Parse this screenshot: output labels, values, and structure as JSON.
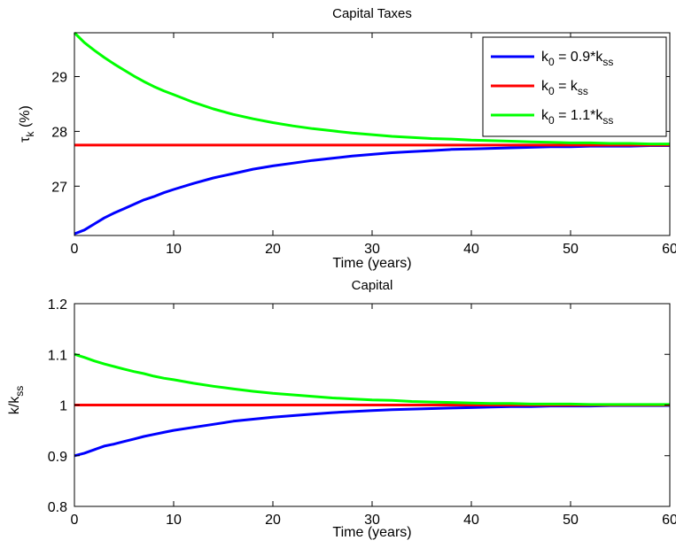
{
  "chart_data": [
    {
      "type": "line",
      "title": "Capital Taxes",
      "xlabel": "Time (years)",
      "ylabel": "τ_k (%)",
      "ylabel_parts": {
        "main": "τ",
        "sub": "k",
        "tail": " (%)"
      },
      "xlim": [
        0,
        60
      ],
      "ylim": [
        26.1,
        29.8
      ],
      "xticks": [
        0,
        10,
        20,
        30,
        40,
        50,
        60
      ],
      "xtick_labels": [
        "0",
        "10",
        "20",
        "30",
        "40",
        "50",
        "60"
      ],
      "yticks": [
        27,
        28,
        29
      ],
      "ytick_labels": [
        "27",
        "28",
        "29"
      ],
      "grid": false,
      "legend_position": "top-right",
      "series": [
        {
          "name": "k0 = 0.9*kss",
          "legend_parts": [
            {
              "t": "k",
              "s": false
            },
            {
              "t": "0",
              "s": true
            },
            {
              "t": " = 0.9*k",
              "s": false
            },
            {
              "t": "ss",
              "s": true
            }
          ],
          "color": "#0000ff",
          "x": [
            0,
            1,
            2,
            3,
            4,
            5,
            6,
            7,
            8,
            9,
            10,
            12,
            14,
            16,
            18,
            20,
            22,
            24,
            26,
            28,
            30,
            32,
            34,
            36,
            38,
            40,
            42,
            44,
            46,
            48,
            50,
            52,
            54,
            56,
            58,
            60
          ],
          "y": [
            26.13,
            26.2,
            26.31,
            26.42,
            26.51,
            26.59,
            26.67,
            26.75,
            26.81,
            26.88,
            26.94,
            27.05,
            27.15,
            27.23,
            27.31,
            27.37,
            27.42,
            27.47,
            27.51,
            27.55,
            27.58,
            27.61,
            27.63,
            27.65,
            27.67,
            27.68,
            27.69,
            27.7,
            27.71,
            27.72,
            27.72,
            27.73,
            27.73,
            27.73,
            27.74,
            27.74
          ]
        },
        {
          "name": "k0 = kss",
          "legend_parts": [
            {
              "t": "k",
              "s": false
            },
            {
              "t": "0",
              "s": true
            },
            {
              "t": " = k",
              "s": false
            },
            {
              "t": "ss",
              "s": true
            }
          ],
          "color": "#ff0000",
          "x": [
            0,
            60
          ],
          "y": [
            27.75,
            27.75
          ]
        },
        {
          "name": "k0 = 1.1*kss",
          "legend_parts": [
            {
              "t": "k",
              "s": false
            },
            {
              "t": "0",
              "s": true
            },
            {
              "t": " = 1.1*k",
              "s": false
            },
            {
              "t": "ss",
              "s": true
            }
          ],
          "color": "#00ff00",
          "x": [
            0,
            1,
            2,
            3,
            4,
            5,
            6,
            7,
            8,
            9,
            10,
            12,
            14,
            16,
            18,
            20,
            22,
            24,
            26,
            28,
            30,
            32,
            34,
            36,
            38,
            40,
            42,
            44,
            46,
            48,
            50,
            52,
            54,
            56,
            58,
            60
          ],
          "y": [
            29.8,
            29.62,
            29.48,
            29.35,
            29.23,
            29.12,
            29.01,
            28.91,
            28.82,
            28.74,
            28.67,
            28.53,
            28.41,
            28.31,
            28.23,
            28.16,
            28.1,
            28.05,
            28.01,
            27.97,
            27.94,
            27.91,
            27.89,
            27.87,
            27.86,
            27.84,
            27.83,
            27.82,
            27.81,
            27.8,
            27.79,
            27.79,
            27.78,
            27.78,
            27.77,
            27.77
          ]
        }
      ]
    },
    {
      "type": "line",
      "title": "Capital",
      "xlabel": "Time (years)",
      "ylabel": "k/k_ss",
      "ylabel_parts": {
        "main": "k/k",
        "sub": "ss",
        "tail": ""
      },
      "xlim": [
        0,
        60
      ],
      "ylim": [
        0.8,
        1.2
      ],
      "xticks": [
        0,
        10,
        20,
        30,
        40,
        50,
        60
      ],
      "xtick_labels": [
        "0",
        "10",
        "20",
        "30",
        "40",
        "50",
        "60"
      ],
      "yticks": [
        0.8,
        0.9,
        1.0,
        1.1,
        1.2
      ],
      "ytick_labels": [
        "0.8",
        "0.9",
        "1",
        "1.1",
        "1.2"
      ],
      "grid": false,
      "series": [
        {
          "name": "k0 = 0.9*kss",
          "color": "#0000ff",
          "x": [
            0,
            1,
            2,
            3,
            4,
            5,
            6,
            7,
            8,
            9,
            10,
            12,
            14,
            16,
            18,
            20,
            22,
            24,
            26,
            28,
            30,
            32,
            34,
            36,
            38,
            40,
            42,
            44,
            46,
            48,
            50,
            52,
            54,
            56,
            58,
            60
          ],
          "y": [
            0.9,
            0.905,
            0.912,
            0.919,
            0.923,
            0.928,
            0.933,
            0.938,
            0.942,
            0.946,
            0.95,
            0.956,
            0.962,
            0.968,
            0.972,
            0.976,
            0.979,
            0.982,
            0.985,
            0.987,
            0.989,
            0.991,
            0.992,
            0.993,
            0.994,
            0.995,
            0.996,
            0.997,
            0.997,
            0.998,
            0.998,
            0.998,
            0.999,
            0.999,
            0.999,
            0.999
          ]
        },
        {
          "name": "k0 = kss",
          "color": "#ff0000",
          "x": [
            0,
            60
          ],
          "y": [
            1.0,
            1.0
          ]
        },
        {
          "name": "k0 = 1.1*kss",
          "color": "#00ff00",
          "x": [
            0,
            1,
            2,
            3,
            4,
            5,
            6,
            7,
            8,
            9,
            10,
            12,
            14,
            16,
            18,
            20,
            22,
            24,
            26,
            28,
            30,
            32,
            34,
            36,
            38,
            40,
            42,
            44,
            46,
            48,
            50,
            52,
            54,
            56,
            58,
            60
          ],
          "y": [
            1.1,
            1.094,
            1.087,
            1.081,
            1.076,
            1.071,
            1.066,
            1.062,
            1.057,
            1.053,
            1.05,
            1.043,
            1.037,
            1.032,
            1.027,
            1.023,
            1.02,
            1.017,
            1.014,
            1.012,
            1.01,
            1.009,
            1.007,
            1.006,
            1.005,
            1.004,
            1.003,
            1.003,
            1.002,
            1.002,
            1.002,
            1.001,
            1.001,
            1.001,
            1.001,
            1.001
          ]
        }
      ]
    }
  ]
}
